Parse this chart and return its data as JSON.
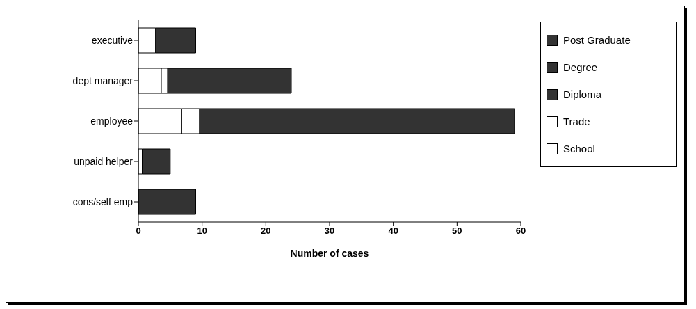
{
  "chart_data": {
    "type": "bar",
    "orientation": "horizontal",
    "stacked": true,
    "categories": [
      "executive",
      "dept manager",
      "employee",
      "unpaid helper",
      "cons/self emp"
    ],
    "series": [
      {
        "name": "School",
        "color": "#ffffff",
        "values": [
          2.7,
          3.6,
          6.8,
          0.6,
          null
        ]
      },
      {
        "name": "Trade",
        "color": "#ffffff",
        "values": [
          null,
          1,
          2.8,
          null,
          null
        ]
      },
      {
        "name": "Diploma",
        "color": "#333333",
        "values": [
          null,
          null,
          null,
          null,
          null
        ]
      },
      {
        "name": "Degree",
        "color": "#333333",
        "values": [
          6.3,
          19.4,
          49.4,
          4.4,
          9
        ]
      },
      {
        "name": "Post Graduate",
        "color": "#333333",
        "values": [
          null,
          null,
          null,
          null,
          null
        ]
      }
    ],
    "xlabel": "Number of cases",
    "xlim": [
      0,
      60
    ],
    "xticks": [
      0,
      10,
      20,
      30,
      40,
      50,
      60
    ],
    "grid": false,
    "legend": "right"
  }
}
